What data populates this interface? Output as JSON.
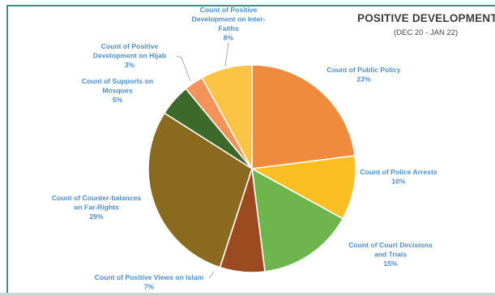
{
  "chart_data": {
    "type": "pie",
    "title": "POSITIVE DEVELOPMENT",
    "subtitle": "(DEC 20 - JAN 22)",
    "legend": "none",
    "slices": [
      {
        "name": "Count of Public Policy",
        "value": 23,
        "pct_label": "23%",
        "color": "#f08a3c",
        "label_lines": [
          "Count of Public Policy"
        ]
      },
      {
        "name": "Count of Police Arrests",
        "value": 10,
        "pct_label": "10%",
        "color": "#fbbf24",
        "label_lines": [
          "Count of Police Arrests"
        ]
      },
      {
        "name": "Count of Court Decisions and Trials",
        "value": 15,
        "pct_label": "15%",
        "color": "#6db54c",
        "label_lines": [
          "Count of Court Decisions",
          "and Trials"
        ]
      },
      {
        "name": "Count of Positive Views on Islam",
        "value": 7,
        "pct_label": "7%",
        "color": "#9c4a1f",
        "label_lines": [
          "Count of Positive Views on Islam"
        ]
      },
      {
        "name": "Count of Counter-balances on Far-Rights",
        "value": 29,
        "pct_label": "29%",
        "color": "#8a6a1e",
        "label_lines": [
          "Count of Counter-balances",
          "on Far-Rights"
        ]
      },
      {
        "name": "Count of Supports on Mosques",
        "value": 5,
        "pct_label": "5%",
        "color": "#3d6a2b",
        "label_lines": [
          "Count of Supports on",
          "Mosques"
        ]
      },
      {
        "name": "Count of Positive Development on Hijab",
        "value": 3,
        "pct_label": "3%",
        "color": "#f4925a",
        "label_lines": [
          "Count of Positive",
          "Development on Hijab"
        ]
      },
      {
        "name": "Count of Positive Development on Inter-Faiths",
        "value": 8,
        "pct_label": "8%",
        "color": "#fcc444",
        "label_lines": [
          "Count of Positive",
          "Development on Inter-",
          "Faiths"
        ]
      }
    ]
  }
}
